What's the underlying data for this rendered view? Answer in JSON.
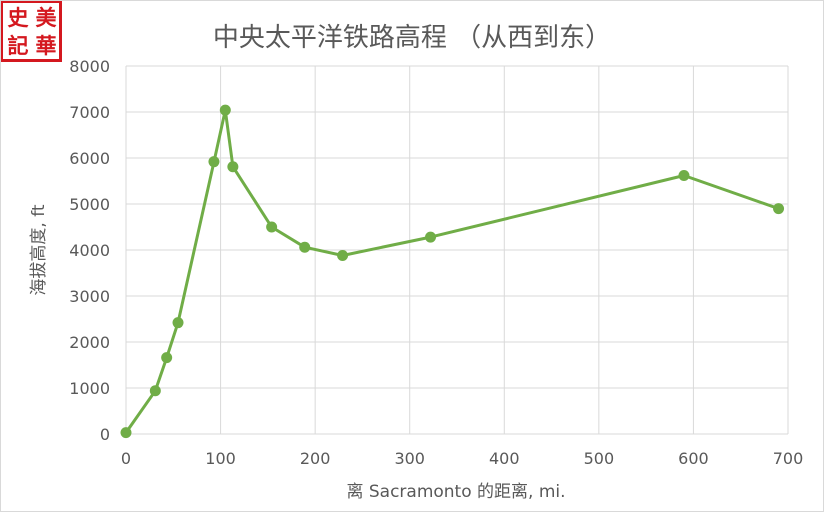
{
  "seal": {
    "chars": [
      "史",
      "記",
      "美",
      "華"
    ],
    "color": "#d4181f"
  },
  "chart_data": {
    "type": "line",
    "title": "中央太平洋铁路高程 （从西到东）",
    "xlabel": "离 Sacramonto 的距离, mi.",
    "ylabel": "海拔高度, ft",
    "xlim": [
      0,
      700
    ],
    "ylim": [
      0,
      8000
    ],
    "xticks": [
      0,
      100,
      200,
      300,
      400,
      500,
      600,
      700
    ],
    "yticks": [
      0,
      1000,
      2000,
      3000,
      4000,
      5000,
      6000,
      7000,
      8000
    ],
    "grid": true,
    "legend": "none",
    "series_color": "#70ad47",
    "series": [
      {
        "x": [
          0,
          31,
          43,
          55,
          93,
          105,
          113,
          154,
          189,
          229,
          322,
          590,
          690
        ],
        "y": [
          30,
          940,
          1660,
          2420,
          5920,
          7040,
          5810,
          4500,
          4060,
          3880,
          4280,
          5620,
          4900
        ]
      }
    ]
  }
}
